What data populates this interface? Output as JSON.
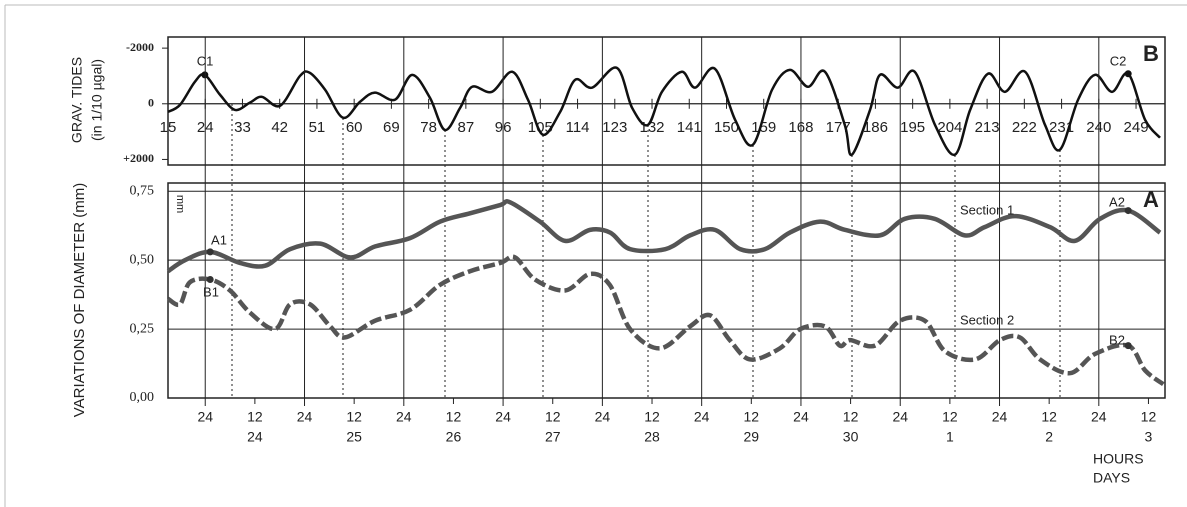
{
  "chart_data": [
    {
      "type": "line",
      "panel_label": "B",
      "ylabel": [
        "GRAV. TIDES",
        "(in 1/10 µgal)"
      ],
      "color": "#111111",
      "x": [
        15,
        17.9,
        21.5,
        23.9,
        27.6,
        31.2,
        34.8,
        37.7,
        42.1,
        46.9,
        49.3,
        53,
        57.3,
        61.4,
        65,
        69.9,
        74,
        78.3,
        81.9,
        85.6,
        88.5,
        93.3,
        98.2,
        102,
        105.6,
        109.8,
        113.4,
        117.5,
        123.5,
        127.2,
        131,
        134.4,
        139.2,
        142.4,
        147.2,
        152.1,
        156.4,
        161,
        165.3,
        169.7,
        173.8,
        178.6,
        180.3,
        184.7,
        187.1,
        191.4,
        195.5,
        200.4,
        205.2,
        208.9,
        213.2,
        217.3,
        222.2,
        227,
        230.6,
        235,
        239.1,
        243.2,
        247.1,
        251.2,
        254.8
      ],
      "values": [
        290,
        40,
        -790,
        -1040,
        -320,
        220,
        -40,
        -250,
        70,
        -1000,
        -1110,
        -500,
        500,
        -70,
        -400,
        -150,
        -1040,
        -220,
        940,
        150,
        -610,
        -430,
        -1150,
        -150,
        1110,
        290,
        -860,
        -580,
        -1290,
        150,
        760,
        -430,
        -1150,
        -580,
        -1260,
        580,
        1470,
        -500,
        -1220,
        -610,
        -1150,
        760,
        1830,
        220,
        -1040,
        -580,
        -1150,
        760,
        1830,
        220,
        -1080,
        -430,
        -1150,
        760,
        1650,
        -150,
        -1040,
        -430,
        -1080,
        580,
        1220
      ],
      "xlim": [
        15,
        256
      ],
      "ylim": [
        2200,
        -2400
      ],
      "yticks": [
        -2000,
        0,
        {
          "value": 2000,
          "label": "+2000"
        }
      ],
      "xticks": [
        15,
        24,
        33,
        42,
        51,
        60,
        69,
        78,
        87,
        96,
        105,
        114,
        123,
        132,
        141,
        150,
        159,
        168,
        177,
        186,
        195,
        204,
        213,
        222,
        231,
        240,
        249
      ],
      "annotations": [
        "C1",
        "C2"
      ]
    },
    {
      "type": "line",
      "panel_label": "A",
      "ylabel": "VARIATIONS OF DIAMETER (mm)",
      "unit": "mm",
      "xlabel": [
        "HOURS",
        "DAYS"
      ],
      "xlim": [
        15,
        256
      ],
      "ylim": [
        0,
        0.78
      ],
      "yticks": [
        {
          "value": 0,
          "label": "0,00"
        },
        {
          "value": 0.25,
          "label": "0,25"
        },
        {
          "value": 0.5,
          "label": "0,50"
        },
        {
          "value": 0.75,
          "label": "0,75"
        }
      ],
      "grid": true,
      "xticks": [
        24,
        {
          "value": 36,
          "label": "12"
        },
        {
          "value": 48,
          "label": "24"
        },
        {
          "value": 60,
          "label": "12"
        },
        {
          "value": 72,
          "label": "24"
        },
        {
          "value": 84,
          "label": "12"
        },
        {
          "value": 96,
          "label": "24"
        },
        {
          "value": 108,
          "label": "12"
        },
        {
          "value": 120,
          "label": "24"
        },
        {
          "value": 132,
          "label": "12"
        },
        {
          "value": 144,
          "label": "24"
        },
        {
          "value": 156,
          "label": "12"
        },
        {
          "value": 168,
          "label": "24"
        },
        {
          "value": 180,
          "label": "12"
        },
        {
          "value": 192,
          "label": "24"
        },
        {
          "value": 204,
          "label": "12"
        },
        {
          "value": 216,
          "label": "24"
        },
        {
          "value": 228,
          "label": "12"
        },
        {
          "value": 240,
          "label": "24"
        },
        {
          "value": 252,
          "label": "12"
        }
      ],
      "day_ticks": [
        {
          "value": 36,
          "label": "24"
        },
        {
          "value": 60,
          "label": "25"
        },
        {
          "value": 84,
          "label": "26"
        },
        {
          "value": 108,
          "label": "27"
        },
        {
          "value": 132,
          "label": "28"
        },
        {
          "value": 156,
          "label": "29"
        },
        {
          "value": 180,
          "label": "30"
        },
        {
          "value": 204,
          "label": "1"
        },
        {
          "value": 228,
          "label": "2"
        },
        {
          "value": 252,
          "label": "3"
        }
      ],
      "series": [
        {
          "name": "Section 1",
          "color": "#555555",
          "dashed": false,
          "x": [
            15,
            19.1,
            25.2,
            32.4,
            38.5,
            44.5,
            51.8,
            59,
            65.1,
            73.5,
            80.8,
            88,
            95.3,
            97.7,
            104.9,
            111,
            117,
            121.9,
            126.7,
            135.2,
            141.2,
            147.2,
            153.3,
            159.3,
            165.3,
            172.6,
            178.6,
            187.1,
            193.1,
            200.3,
            207.6,
            212.4,
            219.7,
            228.2,
            234.2,
            240.3,
            247.1,
            254.8
          ],
          "values": [
            0.46,
            0.5,
            0.53,
            0.49,
            0.48,
            0.54,
            0.56,
            0.51,
            0.55,
            0.58,
            0.64,
            0.67,
            0.7,
            0.71,
            0.64,
            0.57,
            0.61,
            0.6,
            0.54,
            0.54,
            0.59,
            0.61,
            0.54,
            0.54,
            0.6,
            0.64,
            0.61,
            0.59,
            0.65,
            0.65,
            0.59,
            0.62,
            0.66,
            0.62,
            0.57,
            0.65,
            0.68,
            0.6
          ]
        },
        {
          "name": "Section 2",
          "color": "#555555",
          "dashed": true,
          "x": [
            15,
            17.9,
            20.3,
            25.2,
            30,
            34.8,
            40.9,
            44.5,
            49.3,
            54.2,
            57.8,
            65,
            73.5,
            80.7,
            88,
            95.3,
            98.9,
            103.7,
            111,
            117,
            121.8,
            126.7,
            133.9,
            141.2,
            146,
            150.8,
            155.7,
            162.9,
            167.8,
            173.8,
            177.4,
            179.9,
            185.9,
            191.9,
            198,
            202.8,
            210.1,
            216.1,
            220.9,
            225.8,
            233,
            239.1,
            247.1,
            251.2,
            255.6
          ],
          "values": [
            0.36,
            0.34,
            0.42,
            0.43,
            0.39,
            0.31,
            0.25,
            0.34,
            0.34,
            0.26,
            0.22,
            0.28,
            0.32,
            0.41,
            0.46,
            0.49,
            0.51,
            0.43,
            0.39,
            0.45,
            0.41,
            0.25,
            0.18,
            0.26,
            0.3,
            0.21,
            0.14,
            0.18,
            0.25,
            0.26,
            0.19,
            0.21,
            0.19,
            0.28,
            0.28,
            0.17,
            0.14,
            0.21,
            0.22,
            0.14,
            0.09,
            0.16,
            0.19,
            0.1,
            0.05
          ]
        }
      ],
      "annotations": [
        "A1",
        "B1",
        "A2",
        "B2"
      ]
    }
  ]
}
